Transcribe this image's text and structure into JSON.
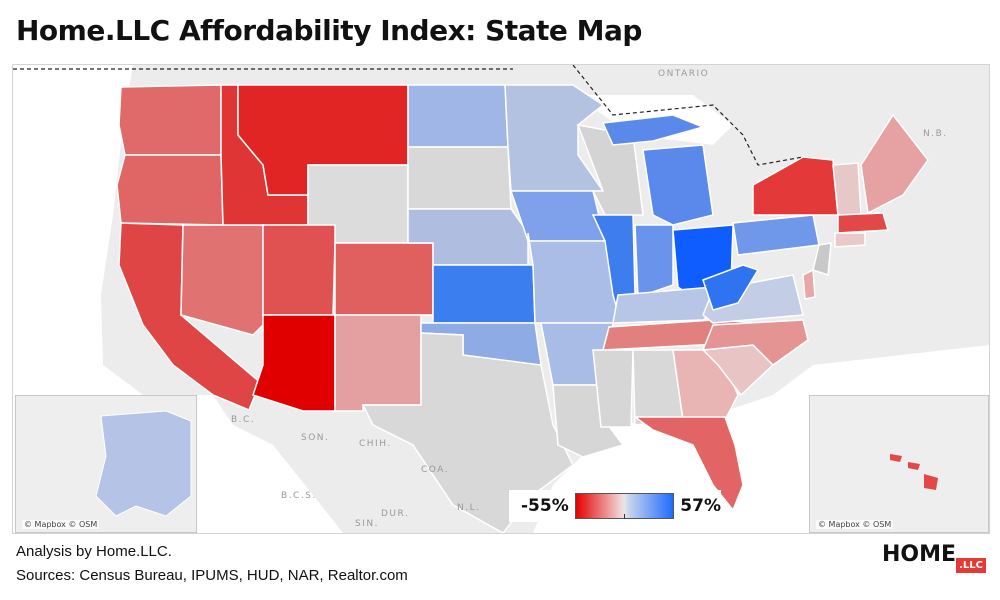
{
  "title": "Home.LLC Affordability Index: State Map",
  "map": {
    "labels": {
      "ontario": "ONTARIO",
      "nb": "N.B.",
      "bc": "B.C.",
      "son": "SON.",
      "chih": "CHIH.",
      "coa": "COA.",
      "bcs": "B.C.S.",
      "dur": "DUR.",
      "nl": "N.L.",
      "sin": "SIN."
    },
    "attribution_left": "© Mapbox © OSM",
    "attribution_right": "© Mapbox © OSM",
    "legend": {
      "min_label": "-55%",
      "max_label": "57%",
      "min_color": "#e60000",
      "mid_color": "#e6e6e6",
      "max_color": "#1f6bff"
    }
  },
  "footer": {
    "analysis": "Analysis by Home.LLC.",
    "sources": "Sources: Census Bureau, IPUMS, HUD, NAR, Realtor.com"
  },
  "brand": {
    "name": "HOME",
    "tag": ".LLC"
  }
}
